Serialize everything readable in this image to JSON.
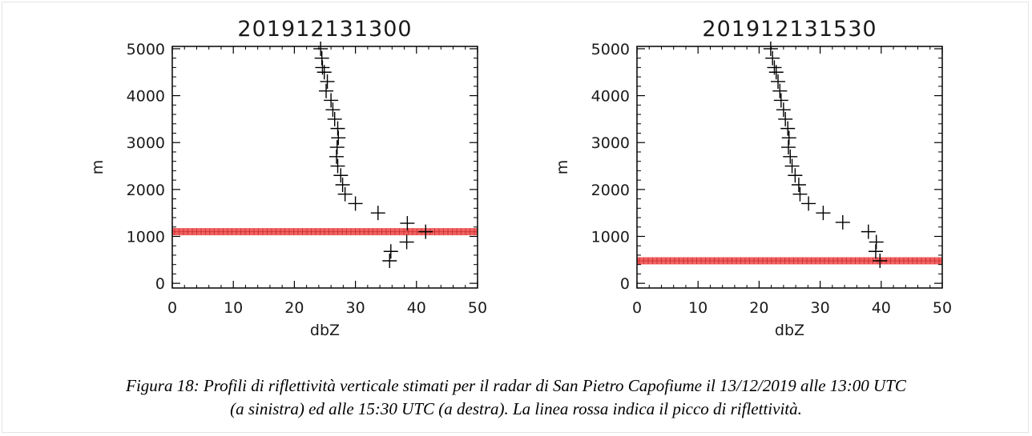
{
  "chart_data": [
    {
      "type": "scatter",
      "title": "201912131300",
      "xlabel": "dbZ",
      "ylabel": "m",
      "xlim": [
        0,
        50
      ],
      "ylim": [
        -100,
        5050
      ],
      "xticks": [
        0,
        10,
        20,
        30,
        40,
        50
      ],
      "yticks": [
        0,
        1000,
        2000,
        3000,
        4000,
        5000
      ],
      "grid": false,
      "marker": "+",
      "marker_color": "#000000",
      "peak_line_color": "#ee3a3a",
      "peak_height": 1100,
      "points": [
        {
          "x": 24.3,
          "y": 5000
        },
        {
          "x": 24.5,
          "y": 4800
        },
        {
          "x": 24.6,
          "y": 4600
        },
        {
          "x": 24.9,
          "y": 4500
        },
        {
          "x": 25.4,
          "y": 4300
        },
        {
          "x": 25.2,
          "y": 4100
        },
        {
          "x": 26.0,
          "y": 3900
        },
        {
          "x": 26.3,
          "y": 3700
        },
        {
          "x": 26.6,
          "y": 3500
        },
        {
          "x": 27.1,
          "y": 3300
        },
        {
          "x": 27.2,
          "y": 3100
        },
        {
          "x": 27.0,
          "y": 2900
        },
        {
          "x": 26.9,
          "y": 2700
        },
        {
          "x": 27.1,
          "y": 2500
        },
        {
          "x": 27.6,
          "y": 2300
        },
        {
          "x": 27.9,
          "y": 2100
        },
        {
          "x": 28.3,
          "y": 1900
        },
        {
          "x": 30.0,
          "y": 1700
        },
        {
          "x": 33.7,
          "y": 1500
        },
        {
          "x": 38.5,
          "y": 1280
        },
        {
          "x": 41.5,
          "y": 1100
        },
        {
          "x": 38.4,
          "y": 880
        },
        {
          "x": 35.8,
          "y": 680
        },
        {
          "x": 35.6,
          "y": 480
        }
      ]
    },
    {
      "type": "scatter",
      "title": "201912131530",
      "xlabel": "dbZ",
      "ylabel": "m",
      "xlim": [
        0,
        50
      ],
      "ylim": [
        -100,
        5050
      ],
      "xticks": [
        0,
        10,
        20,
        30,
        40,
        50
      ],
      "yticks": [
        0,
        1000,
        2000,
        3000,
        4000,
        5000
      ],
      "grid": false,
      "marker": "+",
      "marker_color": "#000000",
      "peak_line_color": "#ee3a3a",
      "peak_height": 480,
      "points": [
        {
          "x": 21.9,
          "y": 5000
        },
        {
          "x": 22.2,
          "y": 4800
        },
        {
          "x": 22.5,
          "y": 4600
        },
        {
          "x": 22.8,
          "y": 4500
        },
        {
          "x": 23.1,
          "y": 4300
        },
        {
          "x": 23.4,
          "y": 4100
        },
        {
          "x": 23.6,
          "y": 3900
        },
        {
          "x": 24.0,
          "y": 3700
        },
        {
          "x": 24.3,
          "y": 3500
        },
        {
          "x": 24.7,
          "y": 3300
        },
        {
          "x": 24.9,
          "y": 3100
        },
        {
          "x": 24.8,
          "y": 2900
        },
        {
          "x": 25.1,
          "y": 2700
        },
        {
          "x": 25.4,
          "y": 2500
        },
        {
          "x": 25.9,
          "y": 2300
        },
        {
          "x": 26.5,
          "y": 2100
        },
        {
          "x": 26.7,
          "y": 1900
        },
        {
          "x": 28.1,
          "y": 1700
        },
        {
          "x": 30.5,
          "y": 1500
        },
        {
          "x": 33.7,
          "y": 1300
        },
        {
          "x": 37.9,
          "y": 1100
        },
        {
          "x": 39.2,
          "y": 880
        },
        {
          "x": 39.1,
          "y": 680
        },
        {
          "x": 39.8,
          "y": 480
        }
      ]
    }
  ],
  "caption": {
    "line1": "Figura 18: Profili di riflettività verticale stimati per il radar di San Pietro Capofiume il 13/12/2019 alle 13:00 UTC",
    "line2": "(a sinistra) ed alle 15:30 UTC (a destra). La linea rossa indica il picco di riflettività."
  }
}
